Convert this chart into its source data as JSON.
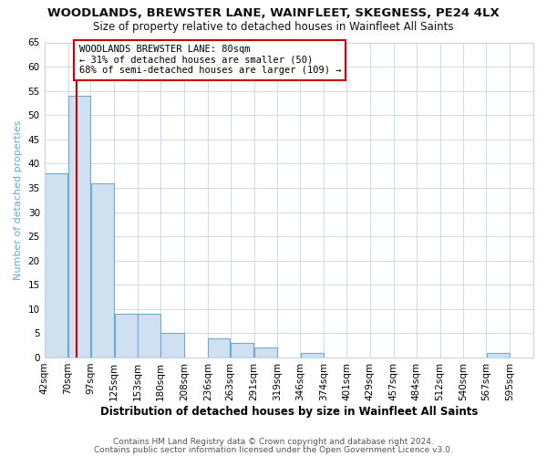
{
  "title": "WOODLANDS, BREWSTER LANE, WAINFLEET, SKEGNESS, PE24 4LX",
  "subtitle": "Size of property relative to detached houses in Wainfleet All Saints",
  "xlabel": "Distribution of detached houses by size in Wainfleet All Saints",
  "ylabel": "Number of detached properties",
  "bin_labels": [
    "42sqm",
    "70sqm",
    "97sqm",
    "125sqm",
    "153sqm",
    "180sqm",
    "208sqm",
    "236sqm",
    "263sqm",
    "291sqm",
    "319sqm",
    "346sqm",
    "374sqm",
    "401sqm",
    "429sqm",
    "457sqm",
    "484sqm",
    "512sqm",
    "540sqm",
    "567sqm",
    "595sqm"
  ],
  "bar_heights": [
    38,
    54,
    36,
    9,
    9,
    5,
    0,
    4,
    3,
    2,
    0,
    1,
    0,
    0,
    0,
    0,
    0,
    0,
    0,
    1,
    0
  ],
  "bar_color": "#cfe0f0",
  "bar_edge_color": "#6aaad4",
  "ylim": [
    0,
    65
  ],
  "yticks": [
    0,
    5,
    10,
    15,
    20,
    25,
    30,
    35,
    40,
    45,
    50,
    55,
    60,
    65
  ],
  "vline_x": 80,
  "vline_color": "#cc0000",
  "annotation_title": "WOODLANDS BREWSTER LANE: 80sqm",
  "annotation_line2": "← 31% of detached houses are smaller (50)",
  "annotation_line3": "68% of semi-detached houses are larger (109) →",
  "annotation_box_color": "#ffffff",
  "annotation_box_edge": "#cc0000",
  "footer1": "Contains HM Land Registry data © Crown copyright and database right 2024.",
  "footer2": "Contains public sector information licensed under the Open Government Licence v3.0.",
  "background_color": "#ffffff",
  "grid_color": "#c8d4e4",
  "bin_edges": [
    42,
    70,
    97,
    125,
    153,
    180,
    208,
    236,
    263,
    291,
    319,
    346,
    374,
    401,
    429,
    457,
    484,
    512,
    540,
    567,
    595,
    623
  ],
  "ylabel_color": "#6aaad4",
  "title_fontsize": 9.5,
  "subtitle_fontsize": 8.5,
  "xlabel_fontsize": 8.5,
  "ylabel_fontsize": 8.0,
  "tick_fontsize": 7.5,
  "footer_fontsize": 6.5
}
